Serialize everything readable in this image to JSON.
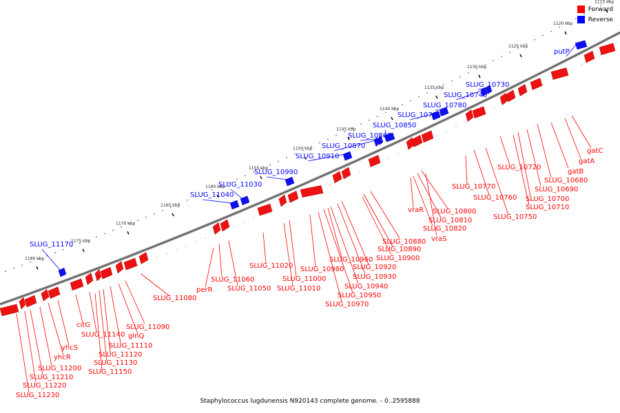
{
  "legend": {
    "forward_label": "Forward",
    "reverse_label": "Reverse",
    "forward_color": "#ff0000",
    "reverse_color": "#0000ff"
  },
  "caption": "Staphylococcus lugdunensis N920143 complete genome. - 0..2595888",
  "ticks": [
    "1115 kbp",
    "1120 kbp",
    "1125 kbp",
    "1130 kbp",
    "1135 kbp",
    "1140 kbp",
    "1145 kbp",
    "1150 kbp",
    "1155 kbp",
    "1160 kbp",
    "1165 kbp",
    "1170 kbp",
    "1175 kbp",
    "1180 kbp"
  ],
  "reverse_genes": [
    "putP",
    "SLUG_10730",
    "SLUG_10740",
    "SLUG_10780",
    "SLUG_10790",
    "SLUG_10850",
    "SLUG_10860",
    "SLUG_10870",
    "SLUG_10910",
    "SLUG_10990",
    "SLUG_11030",
    "SLUG_11040",
    "SLUG_11170"
  ],
  "forward_genes": [
    "gatC",
    "gatA",
    "gatB",
    "SLUG_10680",
    "SLUG_10690",
    "SLUG_10700",
    "SLUG_10710",
    "SLUG_10720",
    "SLUG_10750",
    "SLUG_10760",
    "SLUG_10770",
    "SLUG_10800",
    "SLUG_10810",
    "SLUG_10820",
    "vraS",
    "vraR",
    "SLUG_10880",
    "SLUG_10890",
    "SLUG_10900",
    "SLUG_10920",
    "SLUG_10930",
    "SLUG_10940",
    "SLUG_10950",
    "SLUG_10960",
    "SLUG_10970",
    "SLUG_10980",
    "SLUG_11000",
    "SLUG_11010",
    "SLUG_11020",
    "SLUG_11050",
    "SLUG_11060",
    "perR",
    "SLUG_11080",
    "SLUG_11090",
    "glnQ",
    "SLUG_11110",
    "SLUG_11120",
    "SLUG_11130",
    "SLUG_11140",
    "SLUG_11150",
    "citG",
    "yhcS",
    "yhcR",
    "SLUG_11200",
    "SLUG_11210",
    "SLUG_11220",
    "SLUG_11230"
  ]
}
